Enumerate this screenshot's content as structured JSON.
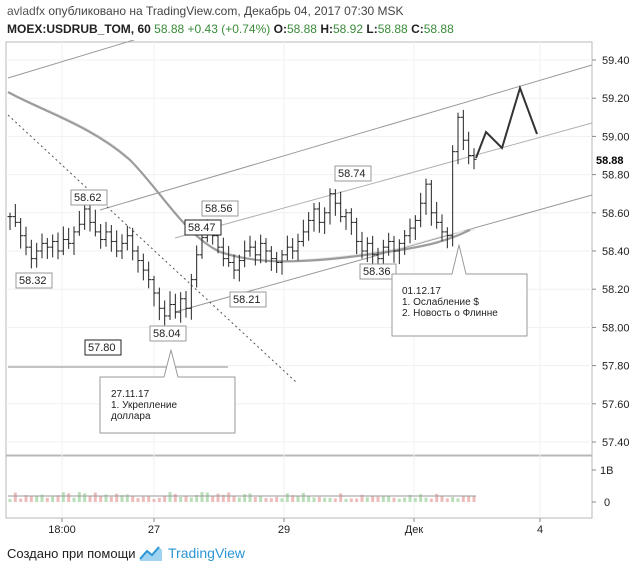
{
  "header": {
    "author": "avladfx",
    "published_text": "опубликовано на TradingView.com, Декабрь 04, 2017 07:30 MSK",
    "symbol": "MOEX:USDRUB_TOM, 60",
    "last": "58.88",
    "change": "+0.43 (+0.74%)",
    "o_label": "O:",
    "o_value": "58.88",
    "h_label": "H:",
    "h_value": "58.92",
    "l_label": "L:",
    "l_value": "58.88",
    "c_label": "C:",
    "c_value": "58.88"
  },
  "footer": {
    "created_text": "Создано при помощи",
    "brand": "TradingView"
  },
  "chart_data": {
    "type": "ohlc",
    "ylim": [
      57.33,
      59.55
    ],
    "y_ticks": [
      "59.40",
      "59.20",
      "59.00",
      "58.80",
      "58.60",
      "58.40",
      "58.20",
      "58.00",
      "57.80",
      "57.60",
      "57.40"
    ],
    "x_ticks": [
      "18:00",
      "27",
      "29",
      "Дек",
      "4"
    ],
    "last_price_label": "58.88",
    "volume_ticks": [
      "1B",
      "0"
    ],
    "price_labels": [
      "58.62",
      "58.32",
      "58.56",
      "58.47",
      "58.21",
      "58.04",
      "58.74",
      "58.36",
      "57.80"
    ],
    "annotations": [
      {
        "lines": [
          "27.11.17",
          "1.  Укрепление",
          "доллара"
        ]
      },
      {
        "lines": [
          "01.12.17",
          "1. Ослабление $",
          "2. Новость о Флинне"
        ]
      }
    ],
    "close_series": [
      58.58,
      58.55,
      58.48,
      58.42,
      58.36,
      58.4,
      58.44,
      58.42,
      58.45,
      58.4,
      58.46,
      58.44,
      58.5,
      58.54,
      58.62,
      58.55,
      58.5,
      58.46,
      58.5,
      58.45,
      58.4,
      58.44,
      58.48,
      58.4,
      58.35,
      58.3,
      58.25,
      58.18,
      58.1,
      58.06,
      58.12,
      58.08,
      58.15,
      58.1,
      58.25,
      58.38,
      58.47,
      58.5,
      58.48,
      58.42,
      58.36,
      58.34,
      58.3,
      58.35,
      58.4,
      58.42,
      58.38,
      58.44,
      58.4,
      58.36,
      58.34,
      58.38,
      58.42,
      58.4,
      58.45,
      58.5,
      58.56,
      58.62,
      58.55,
      58.6,
      58.7,
      58.65,
      58.58,
      58.6,
      58.55,
      58.45,
      58.4,
      58.44,
      58.38,
      58.36,
      58.42,
      58.45,
      58.4,
      58.44,
      58.48,
      58.52,
      58.56,
      58.65,
      58.75,
      58.6,
      58.55,
      58.5,
      58.48,
      58.92,
      59.1,
      58.98,
      58.9,
      58.88
    ]
  }
}
